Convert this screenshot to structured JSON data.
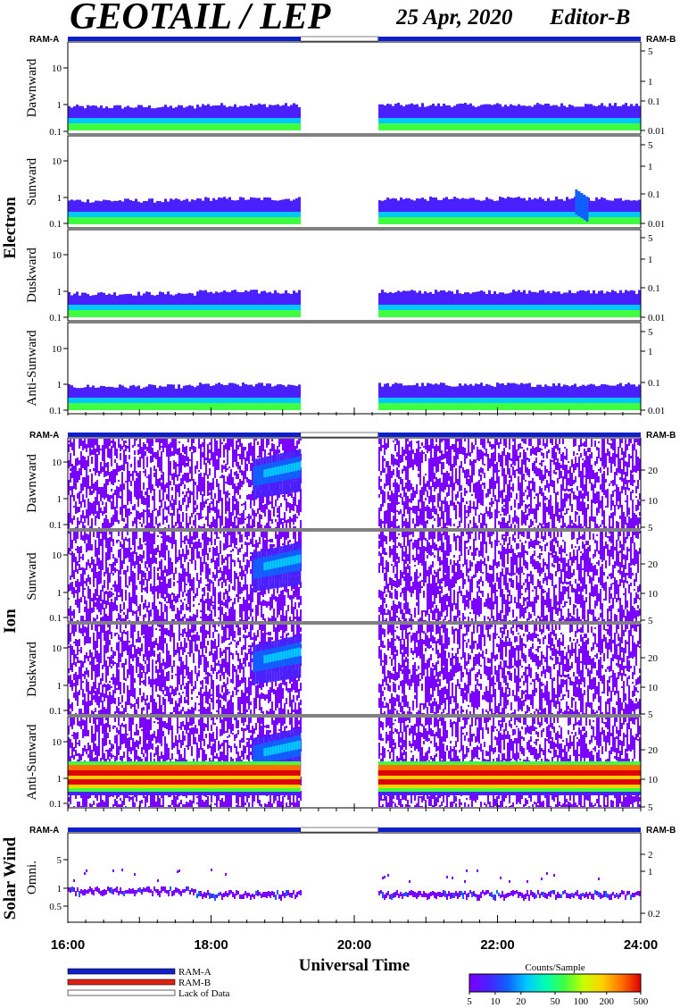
{
  "header": {
    "title": "GEOTAIL / LEP",
    "date": "25 Apr, 2020",
    "editor": "Editor-B"
  },
  "ram_labels": {
    "left": "RAM-A",
    "right": "RAM-B"
  },
  "colors": {
    "ram_a": "#1020c8",
    "ram_b": "#e02010",
    "lack": "#ffffff",
    "scale": [
      "#7a00ff",
      "#4a20ff",
      "#1060ff",
      "#00c8ff",
      "#00ffb4",
      "#40ff40",
      "#c8ff00",
      "#ffd000",
      "#ff7000",
      "#e00000"
    ]
  },
  "chart_data": [
    {
      "type": "heatmap",
      "group": "Electron",
      "ylabel": "Dawnward",
      "yticks_left": [
        "10",
        "1",
        "0.1"
      ],
      "yticks_right": [
        "5",
        "1",
        "0.1",
        "0.01"
      ],
      "style": "electron",
      "activity": [],
      "lack_of_data": [
        "19:15",
        "20:20"
      ]
    },
    {
      "type": "heatmap",
      "group": "Electron",
      "ylabel": "Sunward",
      "yticks_left": [
        "10",
        "1",
        "0.1"
      ],
      "yticks_right": [
        "5",
        "1",
        "0.1",
        "0.01"
      ],
      "style": "electron",
      "activity": [
        "23:05"
      ],
      "lack_of_data": [
        "19:15",
        "20:20"
      ]
    },
    {
      "type": "heatmap",
      "group": "Electron",
      "ylabel": "Duskward",
      "yticks_left": [
        "10",
        "1",
        "0.1"
      ],
      "yticks_right": [
        "5",
        "1",
        "0.1",
        "0.01"
      ],
      "style": "electron",
      "activity": [],
      "lack_of_data": [
        "19:15",
        "20:20"
      ]
    },
    {
      "type": "heatmap",
      "group": "Electron",
      "ylabel": "Anti-Sunward",
      "yticks_left": [
        "10",
        "1",
        "0.1"
      ],
      "yticks_right": [
        "5",
        "1",
        "0.1",
        "0.01"
      ],
      "style": "electron",
      "activity": [],
      "lack_of_data": [
        "19:15",
        "20:20"
      ]
    },
    {
      "type": "heatmap",
      "group": "Ion",
      "ylabel": "Dawnward",
      "yticks_left": [
        "10",
        "1",
        "0.1"
      ],
      "yticks_right": [
        "20",
        "10",
        "5"
      ],
      "style": "ion",
      "activity": [
        "18:35",
        "19:15"
      ],
      "lack_of_data": [
        "19:15",
        "20:20"
      ]
    },
    {
      "type": "heatmap",
      "group": "Ion",
      "ylabel": "Sunward",
      "yticks_left": [
        "10",
        "1",
        "0.1"
      ],
      "yticks_right": [
        "20",
        "10",
        "5"
      ],
      "style": "ion",
      "activity": [
        "18:35",
        "19:15"
      ],
      "lack_of_data": [
        "19:15",
        "20:20"
      ]
    },
    {
      "type": "heatmap",
      "group": "Ion",
      "ylabel": "Duskward",
      "yticks_left": [
        "10",
        "1",
        "0.1"
      ],
      "yticks_right": [
        "20",
        "10",
        "5"
      ],
      "style": "ion",
      "activity": [
        "18:35",
        "19:15"
      ],
      "lack_of_data": [
        "19:15",
        "20:20"
      ]
    },
    {
      "type": "heatmap",
      "group": "Ion",
      "ylabel": "Anti-Sunward",
      "yticks_left": [
        "10",
        "1",
        "0.1"
      ],
      "yticks_right": [
        "20",
        "10",
        "5"
      ],
      "style": "ion_band",
      "activity": [
        "18:35",
        "19:15"
      ],
      "lack_of_data": [
        "19:15",
        "20:20"
      ]
    },
    {
      "type": "heatmap",
      "group": "Solar Wind",
      "ylabel": "Omni.",
      "yticks_left": [
        "5",
        "1",
        "0.5"
      ],
      "yticks_right": [
        "2",
        "1",
        "0.2"
      ],
      "style": "sw",
      "activity": [],
      "lack_of_data": [
        "19:15",
        "20:20"
      ]
    }
  ],
  "x_axis": {
    "label": "Universal Time",
    "range": [
      "16:00",
      "24:00"
    ],
    "ticks": [
      "16:00",
      "18:00",
      "20:00",
      "22:00",
      "24:00"
    ]
  },
  "legend": {
    "items": [
      {
        "label": "RAM-A",
        "color": "#1020c8"
      },
      {
        "label": "RAM-B",
        "color": "#e02010"
      },
      {
        "label": "Lack of Data",
        "color": "#ffffff"
      }
    ]
  },
  "colorbar": {
    "title": "Counts/Sample",
    "ticks": [
      "5",
      "10",
      "20",
      "50",
      "100",
      "200",
      "500"
    ]
  }
}
